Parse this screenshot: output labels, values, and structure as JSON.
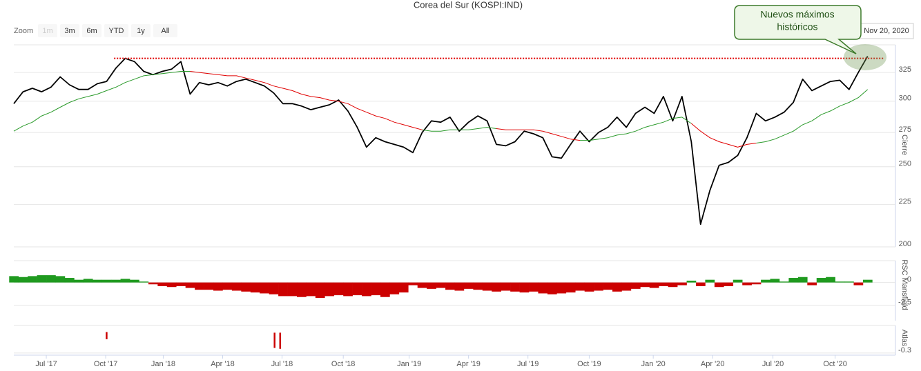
{
  "range_selector": {
    "label": "Zoom",
    "buttons": [
      "1m",
      "3m",
      "6m",
      "YTD",
      "1y",
      "All"
    ],
    "disabled": [
      "1m"
    ]
  },
  "chart_data": [
    {
      "type": "line",
      "title": "Corea del Sur (KOSPI:IND)",
      "y_label": "Cierre",
      "last_date": "Nov 20, 2020",
      "annotation": [
        "Nuevos máximos",
        "históricos"
      ],
      "log_scale": true,
      "grid": true,
      "xlim": [
        0,
        95
      ],
      "xticks": [
        {
          "value": 3.5,
          "label": "Jul '17"
        },
        {
          "value": 9.9,
          "label": "Oct '17"
        },
        {
          "value": 16.1,
          "label": "Jan '18"
        },
        {
          "value": 22.5,
          "label": "Apr '18"
        },
        {
          "value": 28.9,
          "label": "Jul '18"
        },
        {
          "value": 35.5,
          "label": "Oct '18"
        },
        {
          "value": 42.6,
          "label": "Jan '19"
        },
        {
          "value": 49.0,
          "label": "Apr '19"
        },
        {
          "value": 55.4,
          "label": "Jul '19"
        },
        {
          "value": 62.0,
          "label": "Oct '19"
        },
        {
          "value": 68.9,
          "label": "Jan '20"
        },
        {
          "value": 75.3,
          "label": "Apr '20"
        },
        {
          "value": 81.8,
          "label": "Jul '20"
        },
        {
          "value": 88.5,
          "label": "Oct '20"
        }
      ],
      "ylim": [
        200,
        351
      ],
      "yticks": [
        200,
        225,
        250,
        275,
        300,
        325
      ],
      "reference_line": {
        "value": 338,
        "x": [
          10.8,
          93.8
        ],
        "color": "#e00000"
      },
      "series": [
        {
          "color": "#000000",
          "width": 1.8,
          "values": [
            298,
            308,
            311,
            308,
            312,
            321,
            314,
            310,
            310,
            315,
            317,
            329,
            338,
            335,
            326,
            323,
            326,
            328,
            335,
            306,
            316,
            314,
            316,
            313,
            317,
            319,
            316,
            313,
            307,
            298,
            298,
            296,
            293,
            295,
            297,
            301,
            292,
            279,
            264,
            271,
            268,
            266,
            264,
            260,
            275,
            284,
            283,
            287,
            276,
            283,
            288,
            284,
            266,
            265,
            268,
            276,
            274,
            271,
            257,
            256,
            266,
            276,
            268,
            275,
            279,
            287,
            279,
            290,
            295,
            290,
            304,
            284,
            304,
            268,
            213,
            234,
            251,
            253,
            258,
            271,
            290,
            284,
            287,
            291,
            299,
            319,
            309,
            313,
            317,
            318,
            310,
            325,
            340
          ]
        },
        {
          "color": "#2a9a2a",
          "width": 1,
          "values": [
            276,
            280,
            283,
            288,
            291,
            295,
            299,
            302,
            304,
            306,
            309,
            312,
            316,
            319,
            322,
            323,
            324,
            325,
            326,
            326,
            null,
            null,
            null,
            null,
            null,
            null,
            null,
            null,
            null,
            null,
            null,
            null,
            null,
            null,
            null,
            null,
            null,
            null,
            null,
            null,
            null,
            null,
            null,
            null,
            277,
            276,
            276,
            277,
            277,
            277,
            278,
            279,
            278,
            null,
            null,
            null,
            null,
            null,
            null,
            null,
            null,
            269,
            269,
            270,
            271,
            273,
            274,
            276,
            279,
            281,
            283,
            286,
            287,
            282,
            null,
            null,
            null,
            null,
            null,
            null,
            267,
            268,
            270,
            273,
            276,
            281,
            284,
            289,
            292,
            296,
            299,
            303,
            310
          ]
        },
        {
          "color": "#e00000",
          "width": 1,
          "values": [
            null,
            null,
            null,
            null,
            null,
            null,
            null,
            null,
            null,
            null,
            null,
            null,
            null,
            null,
            null,
            null,
            null,
            null,
            null,
            326,
            325,
            324,
            323,
            322,
            322,
            320,
            318,
            316,
            313,
            311,
            309,
            306,
            304,
            303,
            301,
            300,
            298,
            294,
            291,
            288,
            286,
            283,
            281,
            279,
            277,
            null,
            null,
            null,
            null,
            null,
            null,
            null,
            278,
            277,
            277,
            277,
            277,
            276,
            274,
            272,
            270,
            269,
            null,
            null,
            null,
            null,
            null,
            null,
            null,
            null,
            null,
            null,
            null,
            282,
            276,
            271,
            268,
            266,
            264,
            266,
            267,
            null,
            null,
            null,
            null,
            null,
            null,
            null,
            null,
            null,
            null,
            null,
            null
          ]
        }
      ]
    },
    {
      "type": "bar",
      "y_label": "RSC Mansfield",
      "ylim": [
        -4.2,
        2.4
      ],
      "yticks": [
        0,
        -2.5
      ],
      "positive_color": "#1f9a1f",
      "negative_color": "#cc0000",
      "values": [
        0.7,
        0.6,
        0.7,
        0.8,
        0.8,
        0.7,
        0.5,
        0.3,
        0.4,
        0.3,
        0.3,
        0.3,
        0.4,
        0.3,
        0.1,
        -0.2,
        -0.4,
        -0.5,
        -0.4,
        -0.6,
        -0.8,
        -0.8,
        -0.9,
        -0.8,
        -0.9,
        -1.0,
        -1.1,
        -1.2,
        -1.3,
        -1.5,
        -1.5,
        -1.6,
        -1.5,
        -1.7,
        -1.5,
        -1.4,
        -1.5,
        -1.4,
        -1.5,
        -1.4,
        -1.6,
        -1.3,
        -1.1,
        -0.3,
        -0.6,
        -0.7,
        -0.6,
        -0.8,
        -0.9,
        -0.7,
        -0.8,
        -0.9,
        -1.0,
        -0.9,
        -1.0,
        -1.1,
        -1.0,
        -1.2,
        -1.3,
        -1.2,
        -1.1,
        -0.9,
        -1.0,
        -0.9,
        -0.8,
        -1.0,
        -0.9,
        -0.7,
        -0.5,
        -0.6,
        -0.4,
        -0.5,
        -0.3,
        0.2,
        -0.4,
        0.3,
        -0.5,
        -0.4,
        0.3,
        -0.3,
        -0.2,
        0.3,
        0.4,
        0.1,
        0.5,
        0.6,
        -0.3,
        0.5,
        0.6,
        0.1,
        0.1,
        -0.3,
        0.3
      ]
    },
    {
      "type": "range",
      "y_label": "Atlas",
      "ylim": [
        -0.4,
        1.0
      ],
      "yticks": [
        -0.3
      ],
      "color": "#cc0000",
      "x": [
        10.0,
        28.1,
        28.7
      ],
      "low": [
        0.35,
        -0.06,
        -0.1
      ],
      "high": [
        0.69,
        0.66,
        0.66
      ]
    }
  ]
}
